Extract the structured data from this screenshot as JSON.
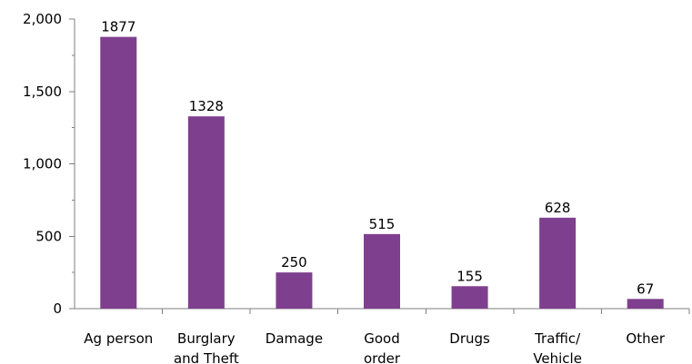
{
  "chart_data": {
    "type": "bar",
    "categories": [
      [
        "Ag person"
      ],
      [
        "Burglary",
        "and Theft"
      ],
      [
        "Damage"
      ],
      [
        "Good",
        "order"
      ],
      [
        "Drugs"
      ],
      [
        "Traffic/",
        "Vehicle"
      ],
      [
        "Other"
      ]
    ],
    "values": [
      1877,
      1328,
      250,
      515,
      155,
      628,
      67
    ],
    "data_labels": [
      "1877",
      "1328",
      "250",
      "515",
      "155",
      "628",
      "67"
    ],
    "y_ticks": [
      0,
      500,
      1000,
      1500,
      2000
    ],
    "y_tick_labels": [
      "0",
      "500",
      "1,000",
      "1,500",
      "2,000"
    ],
    "ylim": [
      0,
      2000
    ],
    "grid": false,
    "legend": "none",
    "bar_color": "#7f3f8f",
    "axis_color": "#7f7f7f"
  }
}
